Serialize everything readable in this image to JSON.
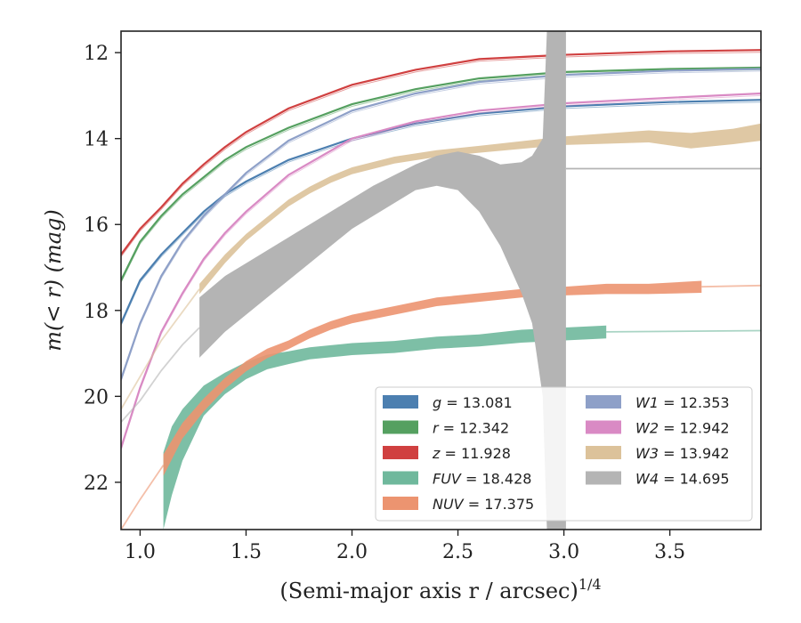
{
  "chart_data": {
    "type": "line",
    "xlabel": "(Semi-major axis r / arcsec)",
    "xlabel_exponent": "1/4",
    "ylabel": "m(< r) (mag)",
    "xlim": [
      0.91,
      3.93
    ],
    "ylim": [
      23.1,
      11.5
    ],
    "y_inverted": true,
    "grid": false,
    "legend_position": "lower-right",
    "x_ticks": [
      1.0,
      1.5,
      2.0,
      2.5,
      3.0,
      3.5
    ],
    "x_tick_labels": [
      "1.0",
      "1.5",
      "2.0",
      "2.5",
      "3.0",
      "3.5"
    ],
    "y_ticks": [
      12,
      14,
      16,
      18,
      20,
      22
    ],
    "y_tick_labels": [
      "12",
      "14",
      "16",
      "18",
      "20",
      "22"
    ],
    "series": [
      {
        "name": "g = 13.081",
        "label_var": "g",
        "label_val": "= 13.081",
        "color": "#4c7fb0",
        "kind": "line",
        "x": [
          0.91,
          1.0,
          1.1,
          1.2,
          1.3,
          1.4,
          1.5,
          1.7,
          2.0,
          2.3,
          2.6,
          3.0,
          3.5,
          3.93
        ],
        "y": [
          18.3,
          17.3,
          16.7,
          16.2,
          15.7,
          15.3,
          15.0,
          14.5,
          14.0,
          13.65,
          13.42,
          13.25,
          13.15,
          13.1
        ]
      },
      {
        "name": "r = 12.342",
        "label_var": "r",
        "label_val": "= 12.342",
        "color": "#55a060",
        "kind": "line",
        "x": [
          0.91,
          1.0,
          1.1,
          1.2,
          1.3,
          1.4,
          1.5,
          1.7,
          2.0,
          2.3,
          2.6,
          3.0,
          3.5,
          3.93
        ],
        "y": [
          17.3,
          16.4,
          15.8,
          15.3,
          14.9,
          14.5,
          14.2,
          13.75,
          13.2,
          12.85,
          12.6,
          12.45,
          12.38,
          12.35
        ]
      },
      {
        "name": "z = 11.928",
        "label_var": "z",
        "label_val": "= 11.928",
        "color": "#d04040",
        "kind": "line",
        "x": [
          0.91,
          1.0,
          1.1,
          1.2,
          1.3,
          1.4,
          1.5,
          1.7,
          2.0,
          2.3,
          2.6,
          3.0,
          3.5,
          3.93
        ],
        "y": [
          16.7,
          16.1,
          15.6,
          15.05,
          14.6,
          14.2,
          13.85,
          13.3,
          12.75,
          12.4,
          12.15,
          12.05,
          11.97,
          11.94
        ]
      },
      {
        "name": "FUV = 18.428",
        "label_var": "FUV",
        "label_val": "= 18.428",
        "color": "#6fb89c",
        "kind": "band",
        "x": [
          1.11,
          1.15,
          1.2,
          1.3,
          1.4,
          1.5,
          1.6,
          1.7,
          1.8,
          1.9,
          2.0,
          2.2,
          2.4,
          2.6,
          2.8,
          3.0,
          3.2
        ],
        "y": [
          22.2,
          21.5,
          20.9,
          20.1,
          19.7,
          19.4,
          19.2,
          19.1,
          19.0,
          18.95,
          18.9,
          18.85,
          18.75,
          18.7,
          18.6,
          18.55,
          18.5
        ],
        "half_width": [
          0.9,
          0.8,
          0.6,
          0.35,
          0.25,
          0.2,
          0.17,
          0.15,
          0.14,
          0.14,
          0.14,
          0.14,
          0.14,
          0.14,
          0.15,
          0.15,
          0.15
        ],
        "tail_x": [
          3.2,
          3.93
        ],
        "tail_y": [
          18.5,
          18.47
        ]
      },
      {
        "name": "NUV = 17.375",
        "label_var": "NUV",
        "label_val": "= 17.375",
        "color": "#ec9470",
        "kind": "band",
        "x": [
          1.11,
          1.2,
          1.3,
          1.4,
          1.5,
          1.6,
          1.7,
          1.8,
          1.9,
          2.0,
          2.2,
          2.4,
          2.6,
          2.8,
          3.0,
          3.2,
          3.4,
          3.65
        ],
        "y": [
          21.6,
          20.8,
          20.2,
          19.7,
          19.3,
          19.0,
          18.8,
          18.55,
          18.35,
          18.2,
          18.0,
          17.8,
          17.7,
          17.6,
          17.55,
          17.5,
          17.5,
          17.45
        ],
        "half_width": [
          0.25,
          0.18,
          0.15,
          0.13,
          0.12,
          0.11,
          0.1,
          0.1,
          0.1,
          0.1,
          0.1,
          0.1,
          0.1,
          0.1,
          0.1,
          0.12,
          0.12,
          0.14
        ],
        "tail_x": [
          0.91,
          1.0,
          1.11
        ],
        "tail_y": [
          23.1,
          22.4,
          21.6
        ],
        "tail2_x": [
          3.65,
          3.93
        ],
        "tail2_y": [
          17.45,
          17.42
        ]
      },
      {
        "name": "W1 = 12.353",
        "label_var": "W1",
        "label_val": "= 12.353",
        "color": "#8ea0c8",
        "kind": "line",
        "x": [
          0.91,
          1.0,
          1.1,
          1.2,
          1.3,
          1.4,
          1.5,
          1.7,
          2.0,
          2.3,
          2.6,
          3.0,
          3.5,
          3.93
        ],
        "y": [
          19.6,
          18.3,
          17.2,
          16.4,
          15.8,
          15.3,
          14.8,
          14.05,
          13.35,
          12.95,
          12.68,
          12.52,
          12.42,
          12.38
        ]
      },
      {
        "name": "W2 = 12.942",
        "label_var": "W2",
        "label_val": "= 12.942",
        "color": "#d98ac4",
        "kind": "line",
        "x": [
          0.91,
          1.0,
          1.1,
          1.2,
          1.3,
          1.4,
          1.5,
          1.7,
          2.0,
          2.3,
          2.6,
          3.0,
          3.5,
          3.93
        ],
        "y": [
          21.2,
          19.8,
          18.5,
          17.6,
          16.8,
          16.2,
          15.7,
          14.85,
          14.0,
          13.6,
          13.35,
          13.18,
          13.05,
          12.95
        ]
      },
      {
        "name": "W3 = 13.942",
        "label_var": "W3",
        "label_val": "= 13.942",
        "color": "#dcc29a",
        "kind": "band",
        "x": [
          1.28,
          1.4,
          1.5,
          1.6,
          1.7,
          1.8,
          1.9,
          2.0,
          2.2,
          2.4,
          2.6,
          2.8,
          3.0,
          3.2,
          3.4,
          3.5,
          3.6,
          3.7,
          3.8,
          3.93
        ],
        "y": [
          17.5,
          16.8,
          16.3,
          15.9,
          15.5,
          15.2,
          14.95,
          14.75,
          14.5,
          14.35,
          14.25,
          14.15,
          14.05,
          14.0,
          13.95,
          14.0,
          14.05,
          14.0,
          13.95,
          13.85
        ],
        "half_width": [
          0.12,
          0.1,
          0.08,
          0.08,
          0.08,
          0.08,
          0.08,
          0.08,
          0.08,
          0.08,
          0.08,
          0.09,
          0.1,
          0.12,
          0.14,
          0.16,
          0.18,
          0.18,
          0.18,
          0.2
        ],
        "tail_x": [
          0.91,
          1.1,
          1.28
        ],
        "tail_y": [
          20.3,
          18.7,
          17.5
        ]
      },
      {
        "name": "W4 = 14.695",
        "label_var": "W4",
        "label_val": "= 14.695",
        "color": "#b4b4b4",
        "kind": "w4",
        "upper_x": [
          1.28,
          1.4,
          1.5,
          1.6,
          1.7,
          1.8,
          1.9,
          2.0,
          2.1,
          2.2,
          2.3,
          2.4,
          2.5,
          2.6,
          2.7,
          2.8,
          2.85,
          2.9,
          2.92
        ],
        "upper_y": [
          17.7,
          17.2,
          16.9,
          16.6,
          16.3,
          16.0,
          15.7,
          15.4,
          15.1,
          14.85,
          14.6,
          14.4,
          14.3,
          14.4,
          14.6,
          14.55,
          14.4,
          14.0,
          11.5
        ],
        "lower_x": [
          1.28,
          1.4,
          1.5,
          1.6,
          1.7,
          1.8,
          1.9,
          2.0,
          2.1,
          2.2,
          2.3,
          2.4,
          2.5,
          2.6,
          2.7,
          2.8,
          2.85,
          2.9,
          2.92
        ],
        "lower_y": [
          19.1,
          18.5,
          18.1,
          17.7,
          17.3,
          16.9,
          16.5,
          16.1,
          15.8,
          15.5,
          15.2,
          15.1,
          15.2,
          15.7,
          16.5,
          17.6,
          18.3,
          20.0,
          23.1
        ],
        "tail_x": [
          0.91,
          1.0,
          1.1,
          1.2,
          1.28
        ],
        "tail_y": [
          20.6,
          20.1,
          19.4,
          18.8,
          18.4
        ],
        "tail2_x": [
          3.01,
          3.93
        ],
        "tail2_y": [
          14.7,
          14.7
        ],
        "column_x": [
          2.92,
          3.01
        ]
      }
    ]
  }
}
